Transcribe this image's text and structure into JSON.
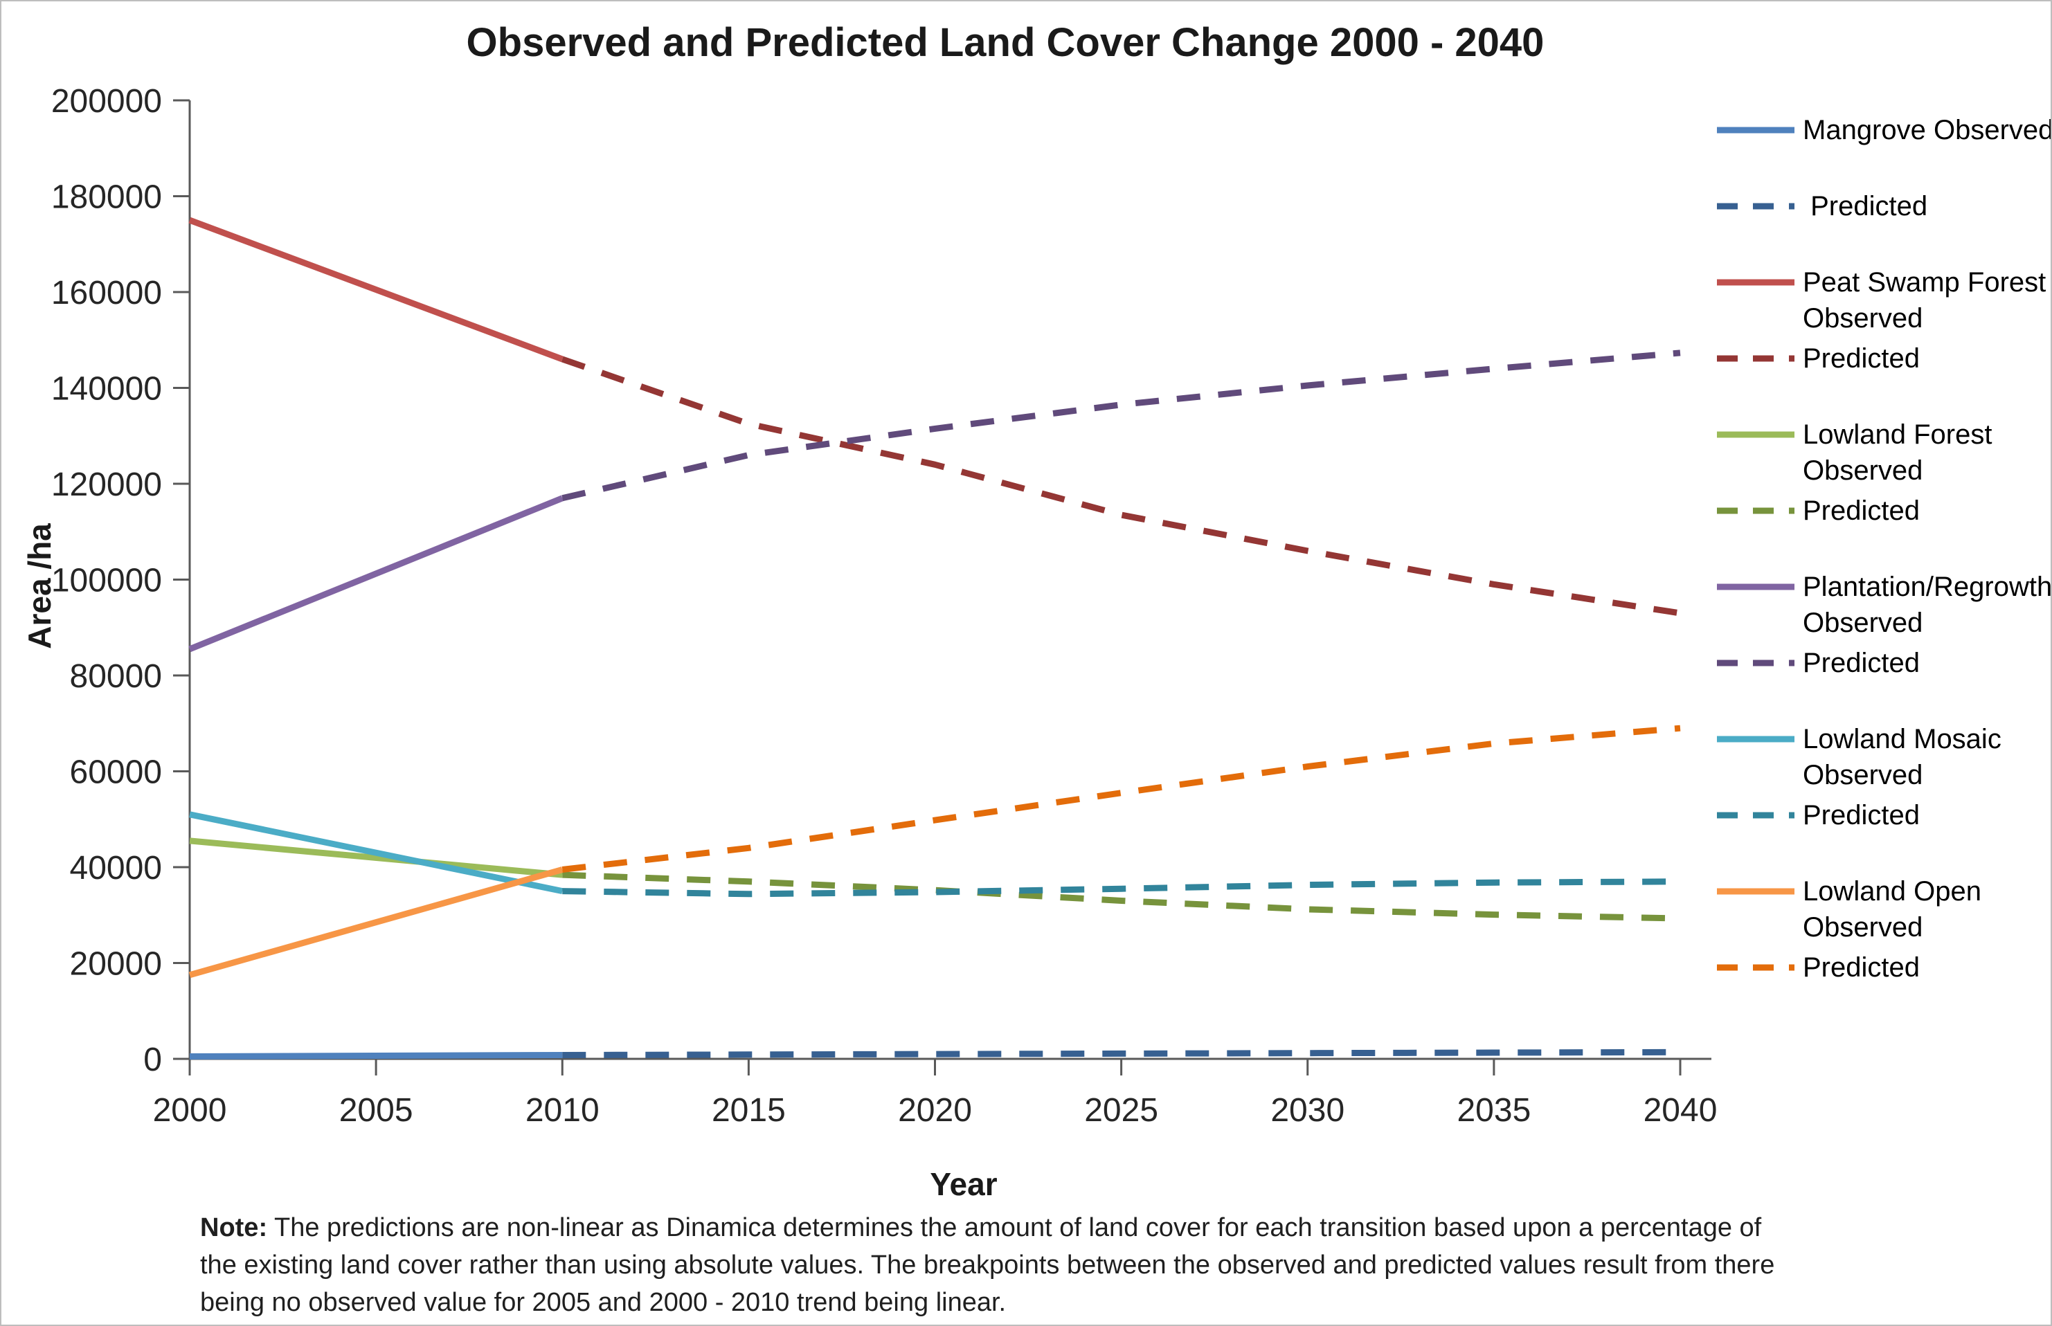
{
  "chart_data": {
    "type": "line",
    "title": "Observed and Predicted Land Cover Change 2000 - 2040",
    "xlabel": "Year",
    "ylabel": "Area /ha",
    "xlim": [
      2000,
      2040
    ],
    "ylim": [
      0,
      200000
    ],
    "x_ticks": [
      2000,
      2005,
      2010,
      2015,
      2020,
      2025,
      2030,
      2035,
      2040
    ],
    "y_ticks": [
      0,
      20000,
      40000,
      60000,
      80000,
      100000,
      120000,
      140000,
      160000,
      180000,
      200000
    ],
    "grid": false,
    "legend_position": "right",
    "axis_color": "#595959",
    "text_color": "#262626",
    "series": [
      {
        "name": "mangrove-observed",
        "legend_label": "Mangrove Observed",
        "style": "solid",
        "color": "#4F81BD",
        "x": [
          2000,
          2010
        ],
        "y": [
          500,
          800
        ]
      },
      {
        "name": "mangrove-predicted",
        "legend_label": " Predicted",
        "style": "dashed",
        "color": "#376091",
        "x": [
          2010,
          2015,
          2020,
          2025,
          2030,
          2035,
          2040
        ],
        "y": [
          800,
          900,
          1000,
          1100,
          1200,
          1300,
          1400
        ]
      },
      {
        "name": "peat-swamp-forest-observed",
        "legend_label": "Peat Swamp Forest\nObserved",
        "style": "solid",
        "color": "#C0504D",
        "x": [
          2000,
          2010
        ],
        "y": [
          175000,
          146000
        ]
      },
      {
        "name": "peat-swamp-forest-predicted",
        "legend_label": "Predicted",
        "style": "dashed",
        "color": "#943634",
        "x": [
          2010,
          2015,
          2020,
          2025,
          2030,
          2035,
          2040
        ],
        "y": [
          146000,
          132500,
          124000,
          113500,
          106000,
          99000,
          93000
        ]
      },
      {
        "name": "lowland-forest-observed",
        "legend_label": "Lowland Forest\nObserved",
        "style": "solid",
        "color": "#9BBB59",
        "x": [
          2000,
          2010
        ],
        "y": [
          45500,
          38400
        ]
      },
      {
        "name": "lowland-forest-predicted",
        "legend_label": "Predicted",
        "style": "dashed",
        "color": "#77933C",
        "x": [
          2010,
          2015,
          2020,
          2025,
          2030,
          2035,
          2040
        ],
        "y": [
          38400,
          37000,
          35200,
          33000,
          31200,
          30100,
          29300
        ]
      },
      {
        "name": "plantation-regrowth-observed",
        "legend_label": "Plantation/Regrowth\nObserved",
        "style": "solid",
        "color": "#8064A2",
        "x": [
          2000,
          2010
        ],
        "y": [
          85500,
          117000
        ]
      },
      {
        "name": "plantation-regrowth-predicted",
        "legend_label": "Predicted",
        "style": "dashed",
        "color": "#604A7B",
        "x": [
          2010,
          2015,
          2020,
          2025,
          2030,
          2035,
          2040
        ],
        "y": [
          117000,
          126000,
          131500,
          136500,
          140500,
          144000,
          147300
        ]
      },
      {
        "name": "lowland-mosaic-observed",
        "legend_label": "Lowland Mosaic\nObserved",
        "style": "solid",
        "color": "#4BACC6",
        "x": [
          2000,
          2010
        ],
        "y": [
          51000,
          35000
        ]
      },
      {
        "name": "lowland-mosaic-predicted",
        "legend_label": "Predicted",
        "style": "dashed",
        "color": "#31849B",
        "x": [
          2010,
          2015,
          2020,
          2025,
          2030,
          2035,
          2040
        ],
        "y": [
          35000,
          34400,
          34800,
          35500,
          36300,
          36800,
          37000
        ]
      },
      {
        "name": "lowland-open-observed",
        "legend_label": "Lowland Open\nObserved",
        "style": "solid",
        "color": "#F79646",
        "x": [
          2000,
          2010
        ],
        "y": [
          17500,
          39500
        ]
      },
      {
        "name": "lowland-open-predicted",
        "legend_label": "Predicted",
        "style": "dashed",
        "color": "#E36C0A",
        "x": [
          2010,
          2015,
          2020,
          2025,
          2030,
          2035,
          2040
        ],
        "y": [
          39500,
          44000,
          49800,
          55500,
          61000,
          65800,
          69000
        ]
      }
    ]
  },
  "note": {
    "label": "Note:",
    "text": " The predictions are non-linear as Dinamica determines the amount of land cover for each transition based upon a percentage of the existing land cover  rather than using absolute values. The breakpoints between the observed and predicted values result from there being no observed value for 2005 and 2000 - 2010 trend being linear."
  }
}
